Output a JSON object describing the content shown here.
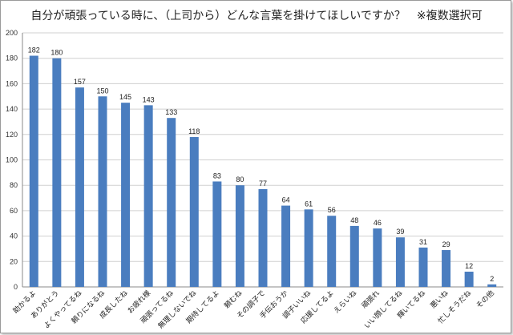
{
  "chart_data": {
    "type": "bar",
    "title": "自分が頑張っている時に、（上司から）どんな言葉を掛けてほしいですか？　※複数選択可",
    "xlabel": "",
    "ylabel": "",
    "ylim": [
      0,
      200
    ],
    "yticks": [
      0,
      20,
      40,
      60,
      80,
      100,
      120,
      140,
      160,
      180,
      200
    ],
    "grid": true,
    "legend": "none",
    "bar_color": "#4a7dbf",
    "categories": [
      "助かるよ",
      "ありがとう",
      "よくやってるね",
      "頼りになるね",
      "成長したね",
      "お疲れ様",
      "頑張ってるね",
      "無理しないでね",
      "期待してるよ",
      "頼むね",
      "その調子で",
      "手伝おうか",
      "調子いいね",
      "応援してるよ",
      "えらいね",
      "頑張れ",
      "いい顔してるね",
      "輝いてるね",
      "悪いね",
      "忙しそうだね",
      "その他"
    ],
    "values": [
      182,
      180,
      157,
      150,
      145,
      143,
      133,
      118,
      83,
      80,
      77,
      64,
      61,
      56,
      48,
      46,
      39,
      31,
      29,
      12,
      2
    ]
  }
}
